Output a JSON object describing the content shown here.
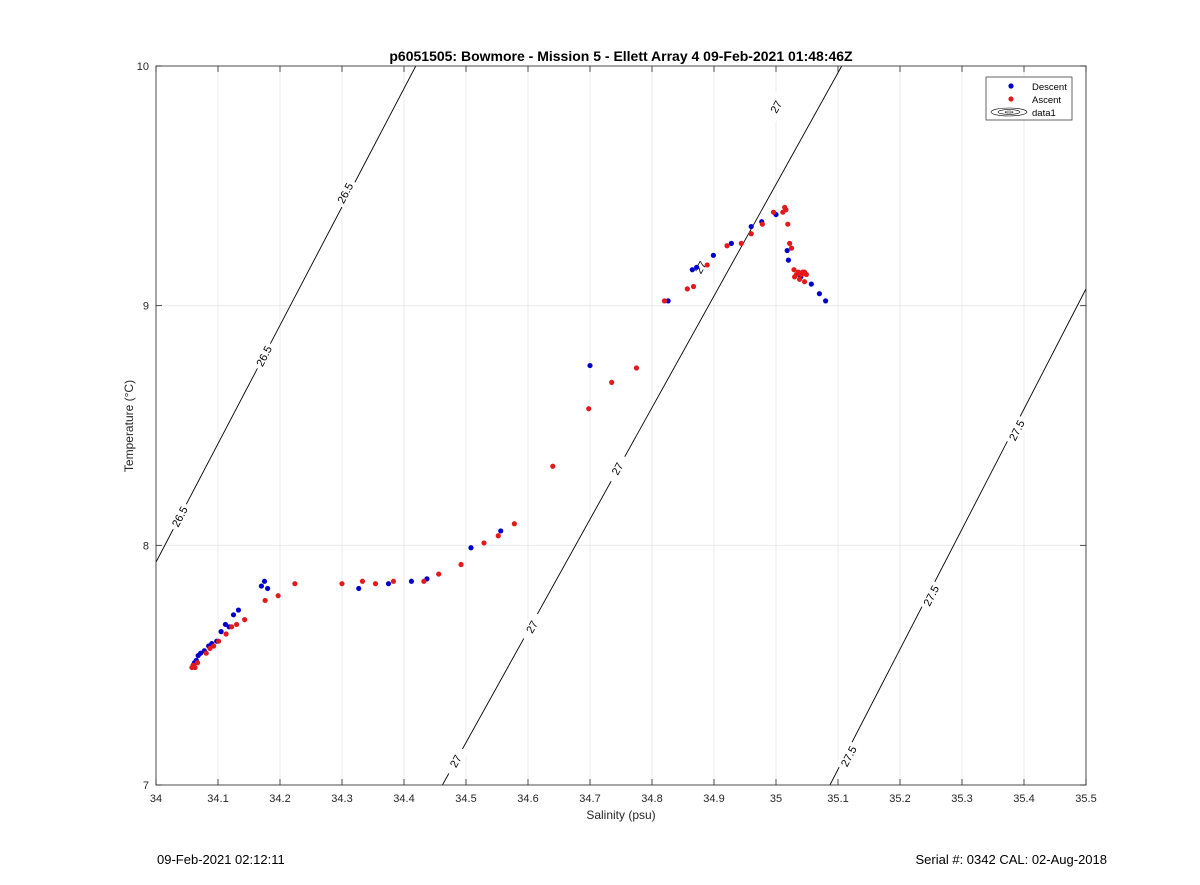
{
  "chart_data": {
    "type": "scatter",
    "title": "p6051505: Bowmore - Mission 5 - Ellett Array 4 09-Feb-2021 01:48:46Z",
    "xlabel": "Salinity (psu)",
    "ylabel": "Temperature (°C)",
    "xlim": [
      34,
      35.5
    ],
    "ylim": [
      7,
      10
    ],
    "xticks": [
      "34",
      "34.1",
      "34.2",
      "34.3",
      "34.4",
      "34.5",
      "34.6",
      "34.7",
      "34.8",
      "34.9",
      "35",
      "35.1",
      "35.2",
      "35.3",
      "35.4",
      "35.5"
    ],
    "yticks": [
      "7",
      "8",
      "9",
      "10"
    ],
    "grid": true,
    "legend_position": "top-right",
    "legend": [
      "Descent",
      "Ascent",
      "data1"
    ],
    "colors": {
      "descent": "#0000cc",
      "ascent": "#e31a1c",
      "contour": "#000000",
      "grid": "#e6e6e6"
    },
    "series": [
      {
        "name": "Descent",
        "marker": "dot",
        "points": [
          [
            34.06,
            7.5
          ],
          [
            34.062,
            7.51
          ],
          [
            34.065,
            7.52
          ],
          [
            34.068,
            7.54
          ],
          [
            34.072,
            7.55
          ],
          [
            34.078,
            7.56
          ],
          [
            34.085,
            7.58
          ],
          [
            34.09,
            7.59
          ],
          [
            34.098,
            7.6
          ],
          [
            34.105,
            7.64
          ],
          [
            34.112,
            7.67
          ],
          [
            34.118,
            7.66
          ],
          [
            34.125,
            7.71
          ],
          [
            34.133,
            7.73
          ],
          [
            34.17,
            7.83
          ],
          [
            34.175,
            7.85
          ],
          [
            34.18,
            7.82
          ],
          [
            34.327,
            7.82
          ],
          [
            34.375,
            7.84
          ],
          [
            34.412,
            7.85
          ],
          [
            34.437,
            7.86
          ],
          [
            34.508,
            7.99
          ],
          [
            34.556,
            8.06
          ],
          [
            34.7,
            8.75
          ],
          [
            34.826,
            9.02
          ],
          [
            34.865,
            9.15
          ],
          [
            34.872,
            9.16
          ],
          [
            34.899,
            9.21
          ],
          [
            34.928,
            9.26
          ],
          [
            34.96,
            9.33
          ],
          [
            34.977,
            9.35
          ],
          [
            35.0,
            9.38
          ],
          [
            35.018,
            9.23
          ],
          [
            35.02,
            9.19
          ],
          [
            35.04,
            9.12
          ],
          [
            35.057,
            9.09
          ],
          [
            35.07,
            9.05
          ],
          [
            35.08,
            9.02
          ]
        ]
      },
      {
        "name": "Ascent",
        "marker": "dot",
        "points": [
          [
            34.058,
            7.49
          ],
          [
            34.06,
            7.5
          ],
          [
            34.063,
            7.49
          ],
          [
            34.067,
            7.51
          ],
          [
            34.081,
            7.55
          ],
          [
            34.087,
            7.57
          ],
          [
            34.093,
            7.58
          ],
          [
            34.101,
            7.6
          ],
          [
            34.113,
            7.63
          ],
          [
            34.122,
            7.66
          ],
          [
            34.13,
            7.67
          ],
          [
            34.143,
            7.69
          ],
          [
            34.176,
            7.77
          ],
          [
            34.197,
            7.79
          ],
          [
            34.224,
            7.84
          ],
          [
            34.3,
            7.84
          ],
          [
            34.333,
            7.85
          ],
          [
            34.354,
            7.84
          ],
          [
            34.383,
            7.85
          ],
          [
            34.432,
            7.85
          ],
          [
            34.456,
            7.88
          ],
          [
            34.492,
            7.92
          ],
          [
            34.529,
            8.01
          ],
          [
            34.552,
            8.04
          ],
          [
            34.578,
            8.09
          ],
          [
            34.64,
            8.33
          ],
          [
            34.698,
            8.57
          ],
          [
            34.735,
            8.68
          ],
          [
            34.775,
            8.74
          ],
          [
            34.82,
            9.02
          ],
          [
            34.857,
            9.07
          ],
          [
            34.867,
            9.08
          ],
          [
            34.889,
            9.17
          ],
          [
            34.921,
            9.25
          ],
          [
            34.944,
            9.26
          ],
          [
            34.96,
            9.3
          ],
          [
            34.978,
            9.34
          ],
          [
            34.996,
            9.39
          ],
          [
            35.011,
            9.39
          ],
          [
            35.014,
            9.41
          ],
          [
            35.016,
            9.4
          ],
          [
            35.019,
            9.34
          ],
          [
            35.022,
            9.26
          ],
          [
            35.025,
            9.24
          ],
          [
            35.029,
            9.15
          ],
          [
            35.03,
            9.12
          ],
          [
            35.033,
            9.13
          ],
          [
            35.036,
            9.14
          ],
          [
            35.038,
            9.11
          ],
          [
            35.041,
            9.13
          ],
          [
            35.043,
            9.14
          ],
          [
            35.046,
            9.14
          ],
          [
            35.049,
            9.13
          ],
          [
            35.046,
            9.1
          ]
        ]
      }
    ],
    "isopycnals": [
      {
        "label": "26.5",
        "line": [
          [
            34.0,
            7.93
          ],
          [
            34.419,
            10.0
          ]
        ],
        "label_positions": [
          [
            34.038,
            8.12
          ],
          [
            34.174,
            8.79
          ],
          [
            34.305,
            9.47
          ]
        ]
      },
      {
        "label": "27",
        "line": [
          [
            34.462,
            7.0
          ],
          [
            35.106,
            10.0
          ]
        ],
        "label_positions": [
          [
            34.483,
            7.1
          ],
          [
            34.606,
            7.66
          ],
          [
            34.744,
            8.32
          ],
          [
            34.878,
            9.16
          ],
          [
            35.0,
            9.83
          ]
        ]
      },
      {
        "label": "27.5",
        "line": [
          [
            35.087,
            7.0
          ],
          [
            35.5,
            9.07
          ]
        ],
        "label_positions": [
          [
            35.117,
            7.12
          ],
          [
            35.25,
            7.79
          ],
          [
            35.388,
            8.48
          ]
        ]
      }
    ]
  },
  "footer": {
    "left": "09-Feb-2021 02:12:11",
    "right": "Serial #: 0342  CAL: 02-Aug-2018"
  }
}
